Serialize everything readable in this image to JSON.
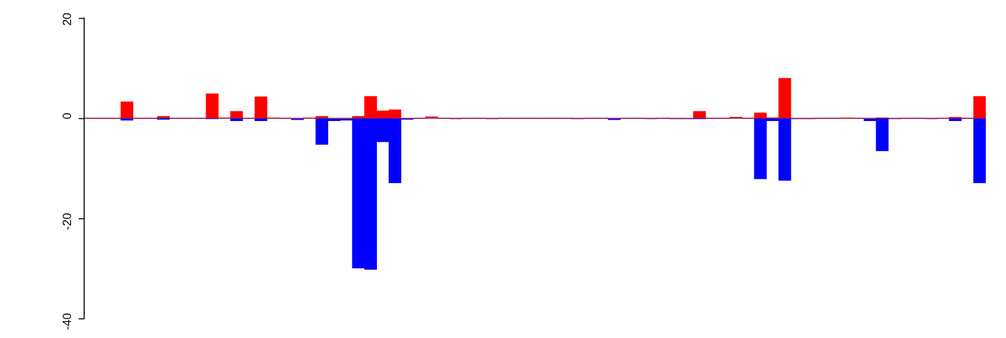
{
  "chart_data": {
    "type": "bar",
    "stacked": true,
    "legend": false,
    "grid": false,
    "categories": [
      null,
      null,
      null,
      null,
      null,
      null,
      null,
      null,
      null,
      null,
      null,
      null,
      null,
      null,
      null,
      null,
      null,
      null,
      null,
      null,
      null,
      null,
      null,
      null,
      null,
      null,
      null,
      null,
      null,
      null,
      null,
      null,
      null,
      null,
      null,
      null,
      null,
      null,
      null,
      null,
      null,
      null,
      null,
      null,
      null,
      null,
      null,
      null,
      null,
      null,
      null,
      null,
      null,
      null,
      null,
      null,
      null,
      null,
      null,
      null,
      null,
      null,
      null,
      null,
      null,
      null,
      null,
      null,
      null,
      null,
      null,
      null,
      null,
      null
    ],
    "series": [
      {
        "color": "#ff0000",
        "values": [
          0,
          0,
          0,
          3.3,
          0,
          0,
          0.4,
          0,
          0,
          0,
          4.9,
          0.1,
          1.4,
          0,
          4.3,
          0.1,
          0,
          0,
          0.1,
          0.4,
          0,
          0,
          0.4,
          4.4,
          1.5,
          1.7,
          0,
          0,
          0.3,
          0,
          0,
          0,
          0,
          0,
          0,
          0,
          0,
          0,
          0,
          0,
          0,
          0,
          0,
          0,
          0,
          0,
          0,
          0,
          0,
          0,
          1.4,
          0,
          0,
          0.2,
          0,
          1.1,
          0.1,
          8.0,
          0,
          0,
          0,
          0,
          0.1,
          0,
          0,
          0.1,
          0,
          0,
          0,
          0,
          0,
          0.2,
          0,
          4.4
        ]
      },
      {
        "color": "#0000ff",
        "values": [
          0,
          0,
          0,
          -0.4,
          0,
          0,
          -0.2,
          0,
          0,
          0,
          -0.1,
          0,
          -0.5,
          0,
          -0.5,
          0,
          0,
          -0.3,
          0,
          -5.2,
          -0.5,
          -0.4,
          -29.9,
          -30.2,
          -4.7,
          -12.9,
          -0.2,
          0,
          0,
          0,
          -0.1,
          0,
          0,
          -0.1,
          0,
          0,
          0,
          0,
          0,
          0,
          -0.1,
          0,
          0,
          -0.3,
          0,
          0,
          -0.1,
          0,
          -0.1,
          -0.1,
          -0.1,
          0,
          0,
          0,
          0,
          -12.1,
          -0.5,
          -12.4,
          -0.1,
          -0.1,
          0,
          0,
          0,
          0,
          -0.5,
          -6.5,
          -0.1,
          0,
          0,
          -0.1,
          0,
          -0.5,
          0,
          -12.9
        ]
      }
    ],
    "ylim": [
      -40,
      20
    ],
    "yticks": [
      -40,
      -20,
      0,
      20
    ],
    "tick_labels": "y",
    "ref_lines": [
      {
        "axis": "y",
        "value": 0,
        "color": "#808080"
      }
    ]
  }
}
